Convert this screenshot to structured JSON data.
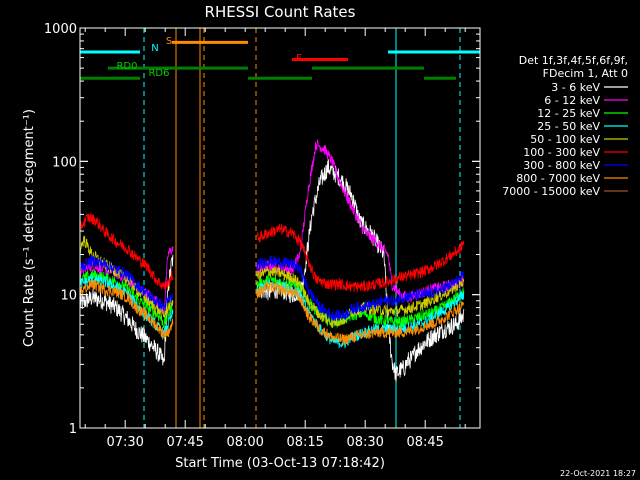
{
  "chart_data": {
    "type": "line",
    "title": "RHESSI Count Rates",
    "xlabel": "Start Time (03-Oct-13 07:18:42)",
    "ylabel": "Count Rate (s⁻¹ detector segment⁻¹)",
    "yscale": "log",
    "ylim": [
      1,
      1000
    ],
    "y_ticks": [
      1,
      10,
      100,
      1000
    ],
    "y_tick_labels": [
      "1",
      "10",
      "100",
      "1000"
    ],
    "x_minutes_after_0718": [
      0,
      100
    ],
    "x_ticks": [
      "07:30",
      "07:45",
      "08:00",
      "08:15",
      "08:30",
      "08:45"
    ],
    "legend": {
      "placement": "right",
      "header": [
        "Det 1f,3f,4f,5f,6f,9f,",
        "FDecim 1, Att 0"
      ]
    },
    "series": [
      {
        "name": "3 - 6 keV",
        "color": "#ffffff",
        "t": [
          0,
          3,
          6,
          9,
          12,
          14,
          17,
          20,
          21,
          22,
          23,
          45,
          47,
          50,
          53,
          55,
          56,
          58,
          60,
          62,
          65,
          68,
          70,
          73,
          76,
          77,
          78,
          79,
          80,
          81,
          82,
          83,
          84,
          85,
          86,
          88,
          91,
          94,
          95,
          96
        ],
        "v": [
          8.5,
          9.5,
          9.0,
          8.0,
          6.5,
          5.5,
          4.5,
          3.5,
          3.0,
          11,
          18,
          11,
          10.5,
          11,
          10,
          10.5,
          14,
          40,
          70,
          90,
          75,
          55,
          35,
          28,
          20,
          6,
          3.2,
          2.5,
          2.7,
          2.8,
          3.2,
          3.3,
          3.8,
          4.0,
          4.3,
          4.8,
          5.5,
          6.0,
          6.5,
          7.0
        ]
      },
      {
        "name": "6 - 12 keV",
        "color": "#ff00ff",
        "t": [
          0,
          3,
          6,
          9,
          12,
          14,
          17,
          20,
          21,
          22,
          23,
          45,
          47,
          50,
          53,
          55,
          57,
          59,
          61,
          63,
          65,
          68,
          71,
          74,
          77,
          78,
          80,
          82,
          84,
          86,
          88,
          91,
          94,
          96
        ],
        "v": [
          15,
          16.5,
          15.5,
          14.5,
          13,
          11.5,
          10,
          8.5,
          7.5,
          20,
          22,
          15.5,
          16.5,
          16,
          15.5,
          20,
          60,
          135,
          125,
          100,
          70,
          45,
          30,
          25,
          20,
          12,
          10,
          9.5,
          10,
          10.5,
          11,
          11.5,
          12,
          13
        ]
      },
      {
        "name": "12 - 25 keV",
        "color": "#00ff00",
        "t": [
          0,
          3,
          6,
          9,
          12,
          14,
          17,
          20,
          21,
          22,
          23,
          45,
          47,
          50,
          53,
          55,
          57,
          60,
          63,
          66,
          68,
          71,
          74,
          77,
          80,
          83,
          86,
          89,
          92,
          95,
          96
        ],
        "v": [
          13,
          14,
          13.5,
          12.5,
          11,
          9.5,
          8,
          6.8,
          6,
          7,
          8,
          12,
          13,
          12.5,
          12,
          11.5,
          9,
          7,
          6.2,
          6.5,
          7,
          7.3,
          6.6,
          6.3,
          6.2,
          6.5,
          7,
          7.5,
          8.5,
          10,
          10.5
        ]
      },
      {
        "name": "25 - 50 keV",
        "color": "#00ffff",
        "t": [
          0,
          3,
          6,
          9,
          12,
          14,
          17,
          20,
          21,
          22,
          23,
          45,
          47,
          50,
          53,
          55,
          57,
          60,
          63,
          66,
          68,
          71,
          74,
          77,
          80,
          83,
          86,
          89,
          92,
          95,
          96
        ],
        "v": [
          12,
          13,
          12.5,
          11.5,
          10,
          8.5,
          6.8,
          5.5,
          5,
          6,
          7,
          11,
          12,
          11.5,
          11,
          10,
          7.5,
          5.5,
          4.5,
          4.3,
          4.8,
          5.2,
          5.5,
          5.5,
          5.5,
          5.8,
          6.2,
          7,
          8,
          9.5,
          10
        ]
      },
      {
        "name": "50 - 100 keV",
        "color": "#cccc00",
        "t": [
          0,
          1,
          3,
          6,
          9,
          12,
          14,
          17,
          20,
          21,
          22,
          23,
          45,
          47,
          50,
          53,
          55,
          57,
          60,
          63,
          66,
          68,
          71,
          74,
          77,
          80,
          83,
          86,
          89,
          92,
          95,
          96
        ],
        "v": [
          22,
          26,
          20,
          17,
          15,
          13,
          11,
          9,
          7.5,
          7,
          8,
          9,
          14,
          15,
          14.5,
          13.5,
          12,
          9,
          7,
          6.2,
          6.5,
          7.5,
          8,
          7.8,
          7.5,
          7.6,
          8,
          8.5,
          9.5,
          10.5,
          12,
          12.5
        ]
      },
      {
        "name": "100 - 300 keV",
        "color": "#ff0000",
        "t": [
          0,
          2,
          4,
          6,
          9,
          12,
          14,
          17,
          19,
          21,
          22,
          23,
          45,
          47,
          50,
          53,
          55,
          57,
          59,
          62,
          65,
          68,
          71,
          74,
          77,
          80,
          83,
          86,
          89,
          92,
          95,
          96
        ],
        "v": [
          32,
          38,
          36,
          30,
          25,
          22,
          19,
          16,
          13,
          11.5,
          12,
          14,
          27,
          29,
          31,
          29,
          25,
          18,
          13,
          12,
          12,
          11.5,
          11.5,
          12,
          12.5,
          13.5,
          14,
          15,
          16.5,
          19,
          22,
          25
        ]
      },
      {
        "name": "300 - 800 keV",
        "color": "#0000ff",
        "t": [
          0,
          3,
          6,
          9,
          12,
          14,
          17,
          20,
          21,
          22,
          23,
          45,
          47,
          50,
          53,
          55,
          57,
          60,
          63,
          66,
          68,
          71,
          74,
          77,
          79,
          80,
          83,
          86,
          89,
          92,
          95,
          96
        ],
        "v": [
          16,
          18,
          17,
          15.5,
          14,
          12,
          10,
          8.5,
          8,
          9,
          9.5,
          17,
          18,
          17.5,
          17,
          15.5,
          11,
          8,
          7,
          7,
          7.8,
          8.2,
          8.5,
          9.2,
          8.8,
          9.5,
          9.8,
          10,
          10.5,
          11.5,
          13,
          14
        ]
      },
      {
        "name": "800 - 7000 keV",
        "color": "#ff8c00",
        "t": [
          0,
          3,
          6,
          9,
          12,
          14,
          17,
          20,
          21,
          22,
          23,
          45,
          47,
          50,
          53,
          55,
          57,
          60,
          63,
          66,
          68,
          71,
          74,
          77,
          80,
          83,
          86,
          89,
          92,
          95,
          96
        ],
        "v": [
          10.5,
          12,
          11,
          10.5,
          9.5,
          8,
          6.8,
          5.5,
          5,
          5.2,
          6,
          10.5,
          11.5,
          11,
          10.5,
          9.5,
          7,
          5.5,
          4.8,
          4.6,
          4.8,
          5,
          5.2,
          5.2,
          5.2,
          5.4,
          5.8,
          6.2,
          7,
          8,
          8.5
        ]
      },
      {
        "name": "7000 - 15000 keV",
        "color": "#a0522d",
        "t": [],
        "v": []
      }
    ],
    "attenuator_bars": [
      {
        "label": "N",
        "label_color": "#00ffff",
        "color": "#00ffff",
        "segments": [
          [
            0,
            15
          ],
          [
            77,
            100
          ]
        ],
        "level": 660
      },
      {
        "label": "S",
        "label_color": "#ff8c00",
        "color": "#ff8c00",
        "segments": [
          [
            23,
            42
          ]
        ],
        "level": 780
      },
      {
        "label": "F",
        "label_color": "#ff0000",
        "color": "#ff0000",
        "segments": [
          [
            53,
            67
          ]
        ],
        "level": 580
      },
      {
        "label": "RD0",
        "label_color": "#00cc00",
        "color": "#008000",
        "segments": [
          [
            7,
            42
          ],
          [
            58,
            86
          ]
        ],
        "level": 500
      },
      {
        "label": "RD6",
        "label_color": "#00cc00",
        "color": "#008000",
        "segments": [
          [
            0,
            15
          ],
          [
            42,
            58
          ],
          [
            86,
            94
          ]
        ],
        "level": 420
      }
    ],
    "vertical_lines": [
      {
        "t": 0,
        "color": "#00ffff",
        "style": "solid"
      },
      {
        "t": 16,
        "color": "#00ffff",
        "style": "dashed"
      },
      {
        "t": 24,
        "color": "#ff8c00",
        "style": "solid"
      },
      {
        "t": 30,
        "color": "#ff8c00",
        "style": "solid"
      },
      {
        "t": 31,
        "color": "#ff8c00",
        "style": "dashed"
      },
      {
        "t": 44,
        "color": "#ff8c00",
        "style": "dashed"
      },
      {
        "t": 79,
        "color": "#00ffff",
        "style": "solid"
      },
      {
        "t": 95,
        "color": "#00ffff",
        "style": "dashed"
      }
    ],
    "footer_timestamp": "22-Oct-2021 18:27"
  }
}
